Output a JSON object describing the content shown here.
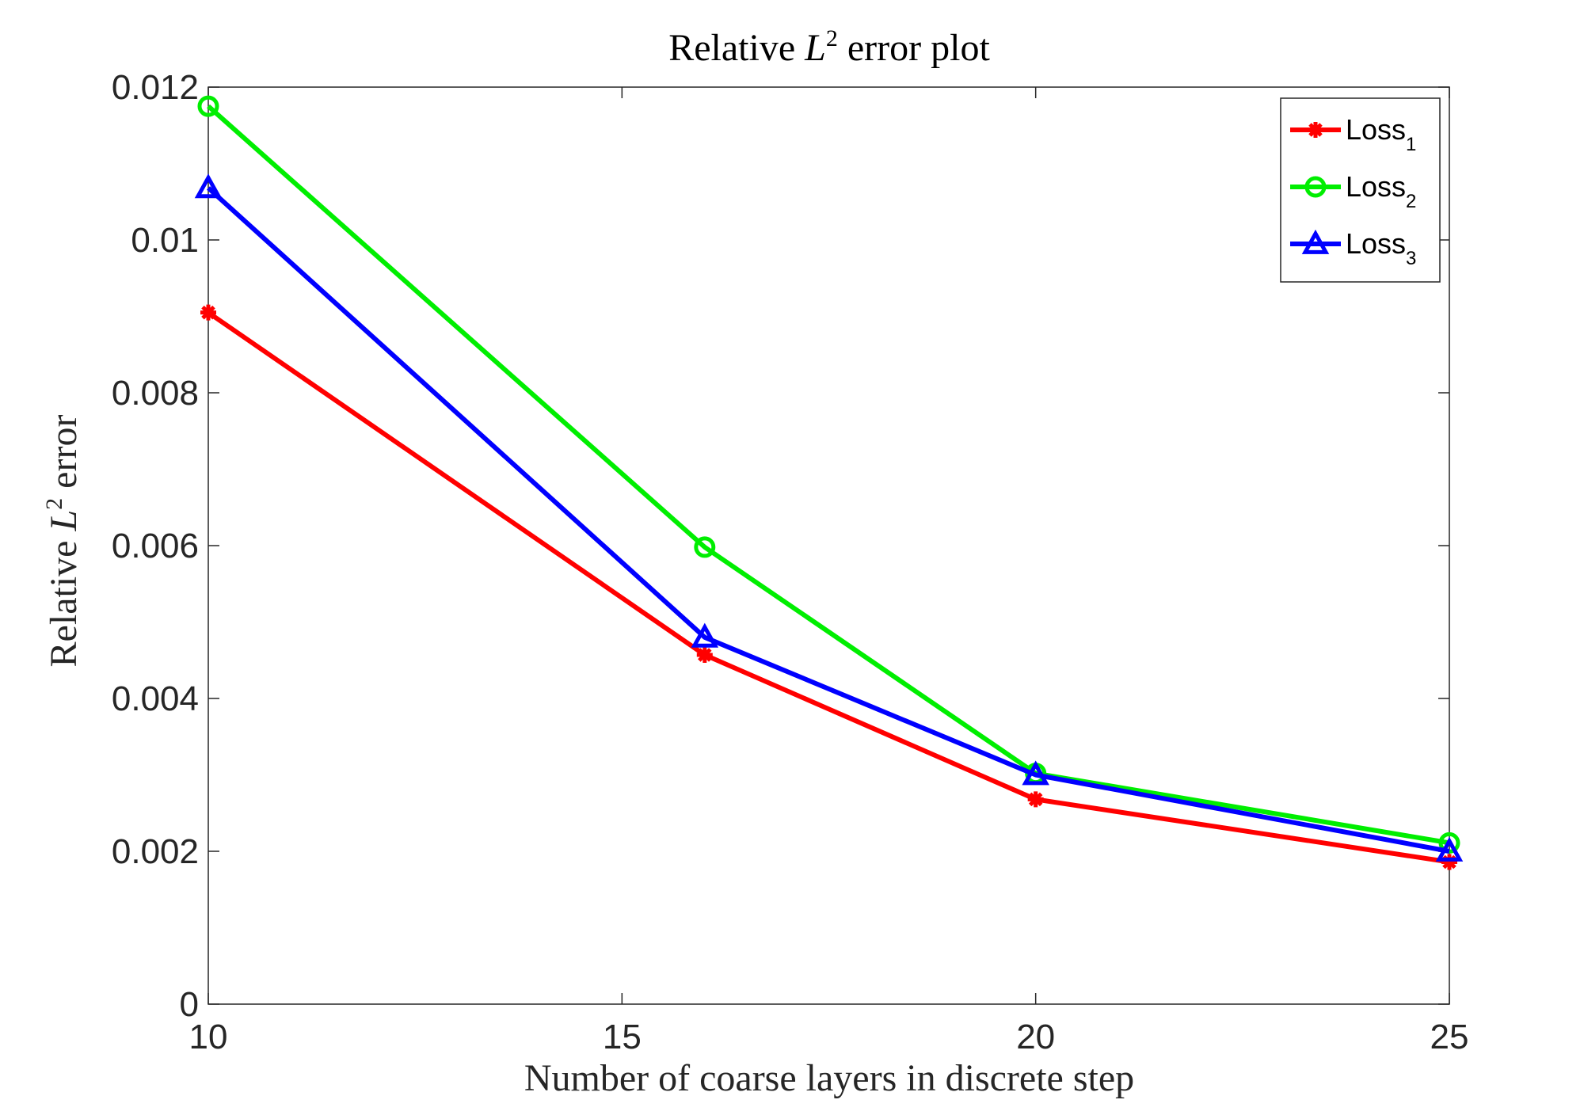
{
  "chart_data": {
    "type": "line",
    "title": {
      "prefix": "Relative ",
      "symbol": "L",
      "superscript": "2",
      "suffix": " error plot"
    },
    "xlabel": "Number of coarse layers in discrete step",
    "ylabel": {
      "prefix": "Relative ",
      "symbol": "L",
      "superscript": "2",
      "suffix": " error"
    },
    "x": [
      10,
      16,
      20,
      25
    ],
    "xlim": [
      10,
      25
    ],
    "ylim": [
      0,
      0.012
    ],
    "xticks": [
      10,
      15,
      20,
      25
    ],
    "xtick_labels": [
      "10",
      "15",
      "20",
      "25"
    ],
    "yticks": [
      0,
      0.002,
      0.004,
      0.006,
      0.008,
      0.01,
      0.012
    ],
    "ytick_labels": [
      "0",
      "0.002",
      "0.004",
      "0.006",
      "0.008",
      "0.01",
      "0.012"
    ],
    "grid": false,
    "legend_position": "top-right",
    "series": [
      {
        "name": "Loss",
        "subscript": "1",
        "color": "#ff0000",
        "marker": "asterisk",
        "values": [
          0.00905,
          0.00457,
          0.00268,
          0.00186
        ]
      },
      {
        "name": "Loss",
        "subscript": "2",
        "color": "#00ee00",
        "marker": "circle",
        "values": [
          0.01175,
          0.00598,
          0.00302,
          0.00211
        ]
      },
      {
        "name": "Loss",
        "subscript": "3",
        "color": "#0000ff",
        "marker": "triangle",
        "values": [
          0.01068,
          0.0048,
          0.003,
          0.002
        ]
      }
    ]
  }
}
